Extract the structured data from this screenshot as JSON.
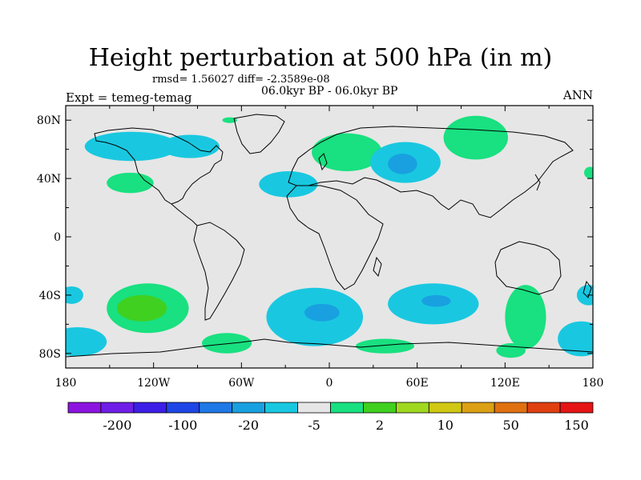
{
  "title": "Height perturbation at 500 hPa (in m)",
  "stats": "rmsd= 1.56027 diff= -2.3589e-08",
  "period": "06.0kyr BP - 06.0kyr BP",
  "experiment": "Expt = temeg-temag",
  "season": "ANN",
  "colors": {
    "background_field": "#e6e6e6",
    "positive_light": "#19e080",
    "positive_mid": "#40d020",
    "negative_light": "#19c8e0",
    "negative_mid": "#19a0e0",
    "coast": "#000000"
  },
  "chart_data": {
    "type": "heatmap",
    "title": "Height perturbation at 500 hPa (in m)",
    "x_ticks": [
      "180",
      "120W",
      "60W",
      "0",
      "60E",
      "120E",
      "180"
    ],
    "x_tick_values": [
      -180,
      -120,
      -60,
      0,
      60,
      120,
      180
    ],
    "y_ticks": [
      "80N",
      "40N",
      "0",
      "40S",
      "80S"
    ],
    "y_tick_values": [
      80,
      40,
      0,
      -40,
      -80
    ],
    "xlim": [
      -180,
      180
    ],
    "ylim": [
      -90,
      90
    ],
    "colorbar": {
      "labels": [
        "-200",
        "-100",
        "-20",
        "-5",
        "2",
        "10",
        "50",
        "150"
      ],
      "label_bins": [
        1,
        3,
        5,
        7,
        9,
        11,
        13,
        15
      ],
      "colors": [
        "#8c14e0",
        "#6e1ee6",
        "#3c1ee6",
        "#1e46e6",
        "#1e78e6",
        "#19a0e0",
        "#19c8e0",
        "#e6e6e6",
        "#19e080",
        "#40d020",
        "#a0d820",
        "#d0c814",
        "#dca014",
        "#e07010",
        "#e04010",
        "#e61414"
      ]
    },
    "regions": [
      {
        "sign": "negative",
        "level": 1,
        "lon": -135,
        "lat": 62,
        "rlon": 32,
        "rlat": 10
      },
      {
        "sign": "negative",
        "level": 1,
        "lon": -95,
        "lat": 62,
        "rlon": 20,
        "rlat": 8
      },
      {
        "sign": "positive",
        "level": 1,
        "lon": -136,
        "lat": 37,
        "rlon": 16,
        "rlat": 7
      },
      {
        "sign": "positive",
        "level": 1,
        "lon": -68,
        "lat": 80,
        "rlon": 5,
        "rlat": 2
      },
      {
        "sign": "negative",
        "level": 1,
        "lon": -28,
        "lat": 36,
        "rlon": 20,
        "rlat": 9
      },
      {
        "sign": "positive",
        "level": 1,
        "lon": 12,
        "lat": 58,
        "rlon": 24,
        "rlat": 13
      },
      {
        "sign": "negative",
        "level": 1,
        "lon": 52,
        "lat": 51,
        "rlon": 24,
        "rlat": 14
      },
      {
        "sign": "negative",
        "level": 2,
        "lon": 50,
        "lat": 50,
        "rlon": 10,
        "rlat": 7
      },
      {
        "sign": "positive",
        "level": 1,
        "lon": 100,
        "lat": 68,
        "rlon": 22,
        "rlat": 15
      },
      {
        "sign": "positive",
        "level": 1,
        "lon": -124,
        "lat": -49,
        "rlon": 28,
        "rlat": 17
      },
      {
        "sign": "positive",
        "level": 2,
        "lon": -128,
        "lat": -49,
        "rlon": 17,
        "rlat": 9
      },
      {
        "sign": "negative",
        "level": 1,
        "lon": -176,
        "lat": -40,
        "rlon": 8,
        "rlat": 6
      },
      {
        "sign": "negative",
        "level": 1,
        "lon": -172,
        "lat": -72,
        "rlon": 20,
        "rlat": 10
      },
      {
        "sign": "positive",
        "level": 1,
        "lon": -70,
        "lat": -73,
        "rlon": 17,
        "rlat": 7
      },
      {
        "sign": "negative",
        "level": 1,
        "lon": -10,
        "lat": -55,
        "rlon": 33,
        "rlat": 20
      },
      {
        "sign": "negative",
        "level": 2,
        "lon": -5,
        "lat": -52,
        "rlon": 12,
        "rlat": 6
      },
      {
        "sign": "positive",
        "level": 1,
        "lon": 38,
        "lat": -75,
        "rlon": 20,
        "rlat": 5
      },
      {
        "sign": "negative",
        "level": 1,
        "lon": 71,
        "lat": -46,
        "rlon": 31,
        "rlat": 14
      },
      {
        "sign": "negative",
        "level": 2,
        "lon": 73,
        "lat": -44,
        "rlon": 10,
        "rlat": 4
      },
      {
        "sign": "positive",
        "level": 1,
        "lon": 134,
        "lat": -55,
        "rlon": 14,
        "rlat": 22
      },
      {
        "sign": "positive",
        "level": 1,
        "lon": 124,
        "lat": -78,
        "rlon": 10,
        "rlat": 5
      },
      {
        "sign": "negative",
        "level": 1,
        "lon": 172,
        "lat": -70,
        "rlon": 16,
        "rlat": 12
      },
      {
        "sign": "negative",
        "level": 1,
        "lon": 177,
        "lat": -40,
        "rlon": 8,
        "rlat": 7
      },
      {
        "sign": "positive",
        "level": 1,
        "lon": 178,
        "lat": 44,
        "rlon": 4,
        "rlat": 4
      }
    ]
  }
}
